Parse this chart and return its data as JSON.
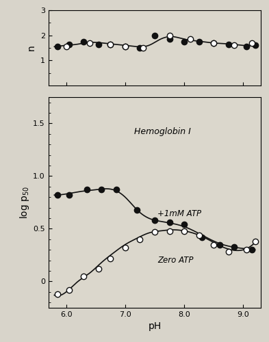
{
  "title": "Hemoglobin I",
  "xlabel": "pH",
  "ylabel_top": "n",
  "ylabel_bottom": "log p₅₀",
  "background_color": "#e8e8e0",
  "fig_bg": "#d4d0c8",
  "n_atp_x": [
    5.85,
    6.05,
    6.3,
    6.55,
    6.75,
    7.0,
    7.25,
    7.5,
    7.75,
    8.0,
    8.25,
    8.5,
    8.75,
    9.05,
    9.2
  ],
  "n_atp_y": [
    1.55,
    1.65,
    1.75,
    1.65,
    1.65,
    1.55,
    1.5,
    2.0,
    1.85,
    1.75,
    1.75,
    1.7,
    1.65,
    1.55,
    1.6
  ],
  "n_zero_x": [
    6.0,
    6.4,
    6.75,
    7.0,
    7.3,
    7.75,
    8.1,
    8.5,
    8.85,
    9.15
  ],
  "n_zero_y": [
    1.55,
    1.7,
    1.65,
    1.55,
    1.5,
    2.0,
    1.85,
    1.7,
    1.6,
    1.7
  ],
  "atp_x": [
    5.85,
    6.05,
    6.35,
    6.6,
    6.85,
    7.2,
    7.5,
    7.75,
    8.0,
    8.3,
    8.6,
    8.85,
    9.15
  ],
  "atp_y": [
    0.82,
    0.82,
    0.87,
    0.87,
    0.87,
    0.68,
    0.58,
    0.56,
    0.54,
    0.42,
    0.35,
    0.33,
    0.3
  ],
  "zero_x": [
    5.85,
    6.05,
    6.3,
    6.55,
    6.75,
    7.0,
    7.25,
    7.5,
    7.75,
    8.0,
    8.25,
    8.5,
    8.75,
    9.05,
    9.2
  ],
  "zero_y": [
    -0.12,
    -0.08,
    0.05,
    0.12,
    0.22,
    0.32,
    0.4,
    0.47,
    0.48,
    0.48,
    0.44,
    0.35,
    0.28,
    0.3,
    0.38
  ],
  "n_curve_x": [
    5.8,
    6.0,
    6.2,
    6.4,
    6.6,
    6.8,
    7.0,
    7.2,
    7.4,
    7.6,
    7.8,
    8.0,
    8.2,
    8.4,
    8.6,
    8.8,
    9.0,
    9.2
  ],
  "n_curve_y": [
    1.55,
    1.6,
    1.65,
    1.72,
    1.7,
    1.65,
    1.6,
    1.55,
    1.6,
    1.85,
    1.95,
    1.85,
    1.78,
    1.72,
    1.68,
    1.65,
    1.6,
    1.6
  ],
  "atp_curve_x": [
    5.8,
    6.0,
    6.2,
    6.5,
    6.8,
    7.0,
    7.2,
    7.4,
    7.6,
    7.8,
    8.0,
    8.3,
    8.6,
    8.9,
    9.2
  ],
  "atp_curve_y": [
    0.82,
    0.83,
    0.85,
    0.87,
    0.87,
    0.8,
    0.68,
    0.6,
    0.57,
    0.55,
    0.52,
    0.44,
    0.36,
    0.32,
    0.3
  ],
  "zero_curve_x": [
    5.8,
    6.0,
    6.2,
    6.4,
    6.6,
    6.8,
    7.0,
    7.2,
    7.4,
    7.6,
    7.8,
    8.0,
    8.2,
    8.4,
    8.6,
    8.8,
    9.0,
    9.2
  ],
  "zero_curve_y": [
    -0.13,
    -0.1,
    0.0,
    0.08,
    0.18,
    0.27,
    0.35,
    0.41,
    0.46,
    0.48,
    0.49,
    0.48,
    0.45,
    0.4,
    0.34,
    0.3,
    0.3,
    0.37
  ],
  "xlim": [
    5.7,
    9.3
  ],
  "xticks": [
    6.0,
    7.0,
    8.0,
    9.0
  ],
  "xticklabels": [
    "6.0",
    "7.0",
    "8.0",
    "9.0"
  ],
  "n_ylim": [
    0,
    3
  ],
  "n_yticks": [
    1,
    2,
    3
  ],
  "log_ylim": [
    -0.25,
    1.75
  ],
  "log_yticks": [
    0,
    0.5,
    1.0,
    1.5
  ],
  "atp_label": "+1mM ATP",
  "zero_label": "Zero ATP",
  "line_color": "#111111",
  "filled_marker_color": "#111111",
  "open_marker_color": "#ffffff",
  "marker_edge_color": "#111111",
  "marker_size": 6,
  "line_width": 1.2
}
